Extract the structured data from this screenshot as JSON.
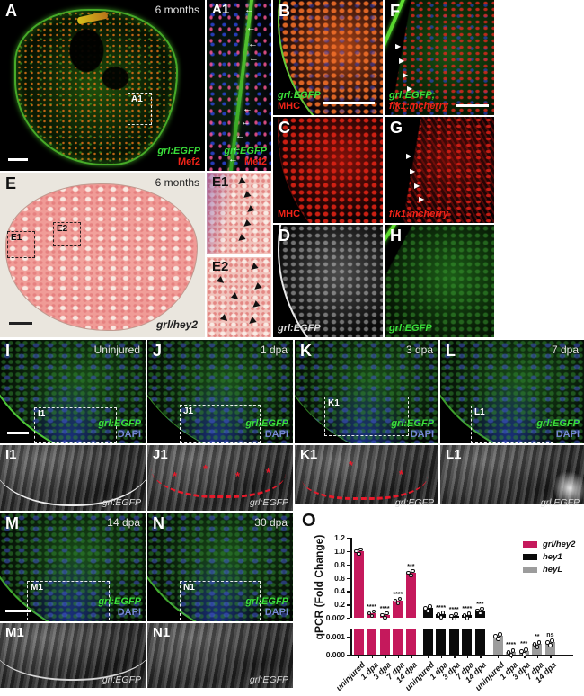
{
  "figure": {
    "panels": {
      "A": {
        "label": "A",
        "time": "6 months",
        "inset_ref": "A1",
        "green": "grl:EGFP",
        "red": "Mef2"
      },
      "A1": {
        "label": "A1",
        "green": "grl:EGFP",
        "red": "Mef2"
      },
      "B": {
        "label": "B",
        "green": "grl:EGFP",
        "red": "MHC"
      },
      "C": {
        "label": "C",
        "red": "MHC"
      },
      "D": {
        "label": "D",
        "white": "grl:EGFP"
      },
      "E": {
        "label": "E",
        "time": "6 months",
        "inset_ref_1": "E1",
        "inset_ref_2": "E2",
        "gene": "grl/hey2"
      },
      "E1": {
        "label": "E1"
      },
      "E2": {
        "label": "E2"
      },
      "F": {
        "label": "F",
        "green": "grl:EGFP;",
        "red": "flk1:mcherry"
      },
      "G": {
        "label": "G",
        "red": "flk1:mcherry"
      },
      "H": {
        "label": "H",
        "green": "grl:EGFP"
      },
      "I": {
        "label": "I",
        "time": "Uninjured",
        "inset_ref": "I1",
        "green": "grl:EGFP",
        "blue": "DAPI"
      },
      "J": {
        "label": "J",
        "time": "1 dpa",
        "inset_ref": "J1",
        "green": "grl:EGFP",
        "blue": "DAPI"
      },
      "K": {
        "label": "K",
        "time": "3 dpa",
        "inset_ref": "K1",
        "green": "grl:EGFP",
        "blue": "DAPI"
      },
      "L": {
        "label": "L",
        "time": "7 dpa",
        "inset_ref": "L1",
        "green": "grl:EGFP",
        "blue": "DAPI"
      },
      "I1": {
        "label": "I1",
        "white": "grl:EGFP"
      },
      "J1": {
        "label": "J1",
        "white": "grl:EGFP"
      },
      "K1": {
        "label": "K1",
        "white": "grl:EGFP"
      },
      "L1": {
        "label": "L1",
        "white": "grl:EGFP"
      },
      "M": {
        "label": "M",
        "time": "14 dpa",
        "inset_ref": "M1",
        "green": "grl:EGFP",
        "blue": "DAPI"
      },
      "N": {
        "label": "N",
        "time": "30 dpa",
        "inset_ref": "N1",
        "green": "grl:EGFP",
        "blue": "DAPI"
      },
      "M1": {
        "label": "M1",
        "white": "grl:EGFP"
      },
      "N1": {
        "label": "N1",
        "white": "grl:EGFP"
      },
      "O": {
        "label": "O"
      }
    },
    "colors": {
      "egfp_green": "#3adf3a",
      "marker_red": "#f02318",
      "dapi_blue": "#7488d2",
      "magenta": "#C5195C",
      "hey1_black": "#0a0a0a",
      "heyl_gray": "#9c9c9c"
    }
  },
  "chart_data": {
    "type": "bar",
    "panel_label": "O",
    "ylabel": "qPCR (Fold Change)",
    "categories": [
      "uninjured",
      "1 dpa",
      "3 dpa",
      "7 dpa",
      "14 dpa"
    ],
    "axis_break": {
      "lower_range": [
        0,
        0.002
      ],
      "upper_range": [
        0.002,
        1.2
      ]
    },
    "upper_ticks": [
      1.2,
      1.0,
      0.8,
      0.6,
      0.4,
      0.2,
      0.002
    ],
    "lower_ticks": [
      0.001,
      0.0
    ],
    "grid": false,
    "legend_position": "top-right",
    "series": [
      {
        "name": "grl/hey2",
        "color": "#C5195C",
        "values": [
          1.0,
          0.07,
          0.045,
          0.26,
          0.68
        ],
        "sig": [
          "",
          "****",
          "****",
          "****",
          "***"
        ]
      },
      {
        "name": "hey1",
        "color": "#0a0a0a",
        "values": [
          0.15,
          0.05,
          0.035,
          0.04,
          0.11
        ],
        "sig": [
          "",
          "****",
          "****",
          "****",
          "***"
        ]
      },
      {
        "name": "heyL",
        "color": "#9c9c9c",
        "values": [
          0.00105,
          0.00015,
          0.0002,
          0.0006,
          0.0007
        ],
        "sig": [
          "",
          "****",
          "***",
          "**",
          "ns"
        ]
      }
    ]
  }
}
